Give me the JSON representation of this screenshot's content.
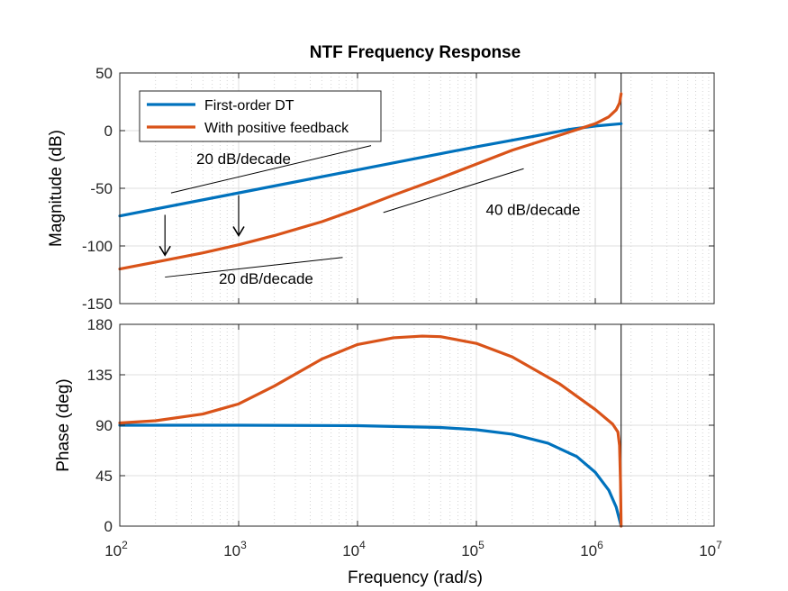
{
  "chart_data": {
    "type": "line",
    "title": "NTF Frequency Response",
    "xlabel": "Frequency  (rad/s)",
    "xscale": "log",
    "xlim": [
      100,
      10000000
    ],
    "x_ticks": [
      {
        "value": 100,
        "base": "10",
        "exp": "2"
      },
      {
        "value": 1000,
        "base": "10",
        "exp": "3"
      },
      {
        "value": 10000,
        "base": "10",
        "exp": "4"
      },
      {
        "value": 100000,
        "base": "10",
        "exp": "5"
      },
      {
        "value": 1000000,
        "base": "10",
        "exp": "6"
      },
      {
        "value": 10000000,
        "base": "10",
        "exp": "7"
      }
    ],
    "grid": true,
    "legend_position": "top-left",
    "colors": {
      "first_order": "#0072BD",
      "positive_feedback": "#D95319"
    },
    "nyquist_line_x": 1650000,
    "magnitude": {
      "ylabel": "Magnitude (dB)",
      "ylim": [
        -150,
        50
      ],
      "yticks": [
        -150,
        -100,
        -50,
        0,
        50
      ],
      "series": [
        {
          "name": "First-order DT",
          "color": "#0072BD",
          "x": [
            100,
            1000,
            10000,
            100000,
            300000,
            600000,
            1000000,
            1650000
          ],
          "y": [
            -74,
            -54,
            -34,
            -14,
            -5,
            1,
            4,
            6
          ]
        },
        {
          "name": "With positive feedback",
          "color": "#D95319",
          "x": [
            100,
            200,
            500,
            1000,
            2000,
            5000,
            10000,
            20000,
            50000,
            100000,
            200000,
            500000,
            1000000,
            1300000,
            1500000,
            1600000,
            1650000
          ],
          "y": [
            -120,
            -114,
            -106,
            -99,
            -91,
            -79,
            -68,
            -56,
            -41,
            -29,
            -17,
            -4,
            6,
            12,
            18,
            24,
            32
          ]
        }
      ],
      "annotations": [
        {
          "text": "20 dB/decade",
          "x": 1100,
          "y": -29
        },
        {
          "text": "40 dB/decade",
          "x": 300000,
          "y": -73
        },
        {
          "text": "20 dB/decade",
          "x": 1700,
          "y": -133
        }
      ],
      "slope_lines": [
        {
          "x1": 270,
          "y1": -54,
          "x2": 13000,
          "y2": -13
        },
        {
          "x1": 16500,
          "y1": -71,
          "x2": 250000,
          "y2": -33
        },
        {
          "x1": 240,
          "y1": -127,
          "x2": 7500,
          "y2": -110
        }
      ],
      "arrows": [
        {
          "x": 240,
          "y_from": -73,
          "y_to": -108
        },
        {
          "x": 1000,
          "y_from": -56,
          "y_to": -91
        }
      ]
    },
    "phase": {
      "ylabel": "Phase (deg)",
      "ylim": [
        0,
        180
      ],
      "yticks": [
        0,
        45,
        90,
        135,
        180
      ],
      "series": [
        {
          "name": "First-order DT",
          "color": "#0072BD",
          "x": [
            100,
            1000,
            10000,
            50000,
            100000,
            200000,
            400000,
            700000,
            1000000,
            1300000,
            1500000,
            1650000
          ],
          "y": [
            90,
            90,
            89.6,
            88,
            86,
            82,
            74,
            62,
            48,
            32,
            17,
            0
          ]
        },
        {
          "name": "With positive feedback",
          "color": "#D95319",
          "x": [
            100,
            200,
            500,
            1000,
            2000,
            5000,
            10000,
            20000,
            35000,
            50000,
            100000,
            200000,
            500000,
            1000000,
            1400000,
            1550000,
            1600000,
            1630000,
            1650000
          ],
          "y": [
            92,
            94,
            100,
            109,
            125,
            149,
            162,
            168,
            169.5,
            169,
            163,
            151,
            127,
            104,
            91,
            84,
            72,
            40,
            0
          ]
        }
      ]
    }
  }
}
